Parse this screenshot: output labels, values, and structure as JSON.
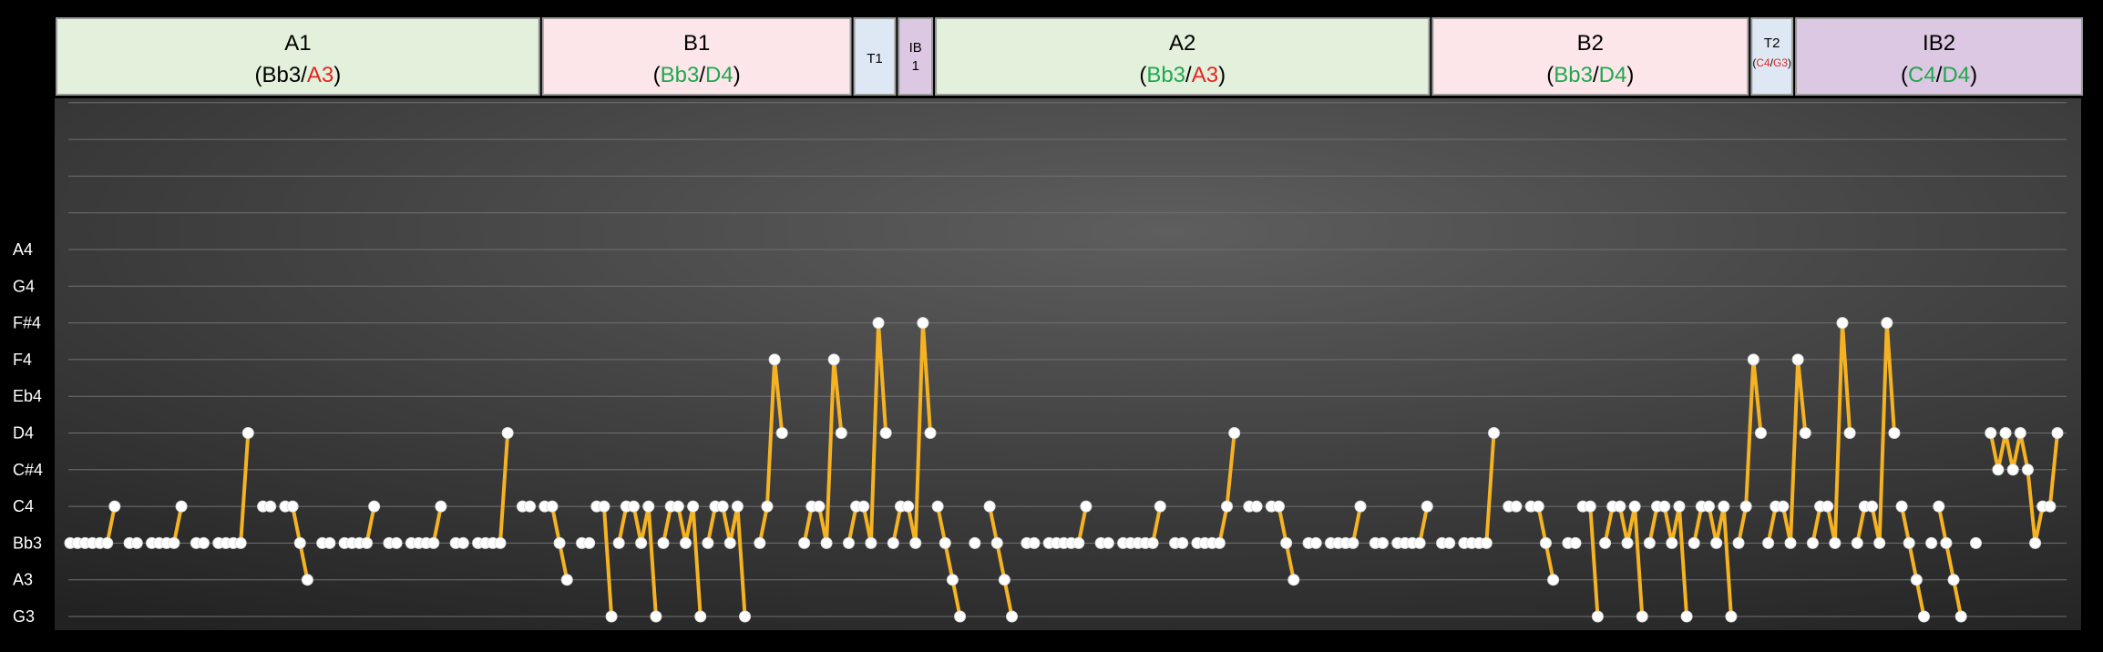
{
  "colors": {
    "A": "#e3f0dc",
    "B": "#fce6ea",
    "T": "#dde8f4",
    "IB": "#dcc8e2",
    "green": "#1fa84f",
    "red": "#e3261f",
    "line": "#f5b324",
    "marker": "#ffffff"
  },
  "sections": [
    {
      "type": "A",
      "name": "A1",
      "chords": [
        {
          "t": "Bb3",
          "c": "default"
        },
        {
          "t": "A3",
          "c": "red"
        }
      ],
      "start": 1,
      "end": 64
    },
    {
      "type": "B",
      "name": "B1",
      "chords": [
        {
          "t": "Bb3",
          "c": "green"
        },
        {
          "t": "D4",
          "c": "green"
        }
      ],
      "start": 65,
      "end": 106
    },
    {
      "type": "T",
      "name": "T1",
      "chords": [],
      "start": 107,
      "end": 112
    },
    {
      "type": "IB",
      "name": "IB 1",
      "chords": [],
      "start": 113,
      "end": 117
    },
    {
      "type": "A",
      "name": "A2",
      "chords": [
        {
          "t": "Bb3",
          "c": "green"
        },
        {
          "t": "A3",
          "c": "red"
        }
      ],
      "start": 118,
      "end": 184
    },
    {
      "type": "B",
      "name": "B2",
      "chords": [
        {
          "t": "Bb3",
          "c": "green"
        },
        {
          "t": "D4",
          "c": "green"
        }
      ],
      "start": 185,
      "end": 227
    },
    {
      "type": "T",
      "name": "T2",
      "chords": [
        {
          "t": "C4",
          "c": "red"
        },
        {
          "t": "G3",
          "c": "red"
        }
      ],
      "start": 228,
      "end": 233
    },
    {
      "type": "IB",
      "name": "IB2",
      "chords": [
        {
          "t": "C4",
          "c": "green"
        },
        {
          "t": "D4",
          "c": "green"
        }
      ],
      "start": 234,
      "end": 250
    }
  ],
  "chart_data": {
    "type": "line",
    "xlim": [
      0,
      252
    ],
    "y_tick_labels": [
      "G3",
      "A3",
      "Bb3",
      "C4",
      "C#4",
      "D4",
      "Eb4",
      "F4",
      "F#4",
      "G4",
      "A4",
      "",
      "",
      "",
      ""
    ],
    "ylim": [
      0,
      14
    ],
    "grid": true,
    "series": [
      {
        "points": [
          [
            1,
            2
          ],
          [
            2,
            2
          ]
        ]
      },
      {
        "points": [
          [
            3,
            2
          ],
          [
            4,
            2
          ],
          [
            5,
            2
          ],
          [
            6,
            2
          ],
          [
            7,
            3
          ]
        ]
      },
      {
        "points": [
          [
            9,
            2
          ],
          [
            10,
            2
          ]
        ]
      },
      {
        "points": [
          [
            12,
            2
          ],
          [
            13,
            2
          ],
          [
            14,
            2
          ],
          [
            15,
            2
          ],
          [
            16,
            3
          ]
        ]
      },
      {
        "points": [
          [
            18,
            2
          ],
          [
            19,
            2
          ]
        ]
      },
      {
        "points": [
          [
            21,
            2
          ],
          [
            22,
            2
          ],
          [
            23,
            2
          ],
          [
            24,
            2
          ],
          [
            25,
            5
          ]
        ]
      },
      {
        "points": [
          [
            27,
            3
          ],
          [
            28,
            3
          ]
        ]
      },
      {
        "points": [
          [
            30,
            3
          ],
          [
            31,
            3
          ],
          [
            32,
            2
          ],
          [
            33,
            1
          ]
        ]
      },
      {
        "points": [
          [
            35,
            2
          ],
          [
            36,
            2
          ]
        ]
      },
      {
        "points": [
          [
            38,
            2
          ],
          [
            39,
            2
          ],
          [
            40,
            2
          ],
          [
            41,
            2
          ],
          [
            42,
            3
          ]
        ]
      },
      {
        "points": [
          [
            44,
            2
          ],
          [
            45,
            2
          ]
        ]
      },
      {
        "points": [
          [
            47,
            2
          ],
          [
            48,
            2
          ],
          [
            49,
            2
          ],
          [
            50,
            2
          ],
          [
            51,
            3
          ]
        ]
      },
      {
        "points": [
          [
            53,
            2
          ],
          [
            54,
            2
          ]
        ]
      },
      {
        "points": [
          [
            56,
            2
          ],
          [
            57,
            2
          ],
          [
            58,
            2
          ],
          [
            59,
            2
          ],
          [
            60,
            5
          ]
        ]
      },
      {
        "points": [
          [
            62,
            3
          ],
          [
            63,
            3
          ]
        ]
      },
      {
        "points": [
          [
            65,
            3
          ],
          [
            66,
            3
          ],
          [
            67,
            2
          ],
          [
            68,
            1
          ]
        ]
      },
      {
        "points": [
          [
            70,
            2
          ],
          [
            71,
            2
          ]
        ]
      },
      {
        "points": [
          [
            72,
            3
          ],
          [
            73,
            3
          ],
          [
            74,
            0
          ]
        ]
      },
      {
        "points": [
          [
            75,
            2
          ],
          [
            76,
            3
          ],
          [
            77,
            3
          ],
          [
            78,
            2
          ],
          [
            79,
            3
          ],
          [
            80,
            0
          ]
        ]
      },
      {
        "points": [
          [
            81,
            2
          ],
          [
            82,
            3
          ],
          [
            83,
            3
          ],
          [
            84,
            2
          ],
          [
            85,
            3
          ],
          [
            86,
            0
          ]
        ]
      },
      {
        "points": [
          [
            87,
            2
          ],
          [
            88,
            3
          ],
          [
            89,
            3
          ],
          [
            90,
            2
          ],
          [
            91,
            3
          ],
          [
            92,
            0
          ]
        ]
      },
      {
        "points": [
          [
            94,
            2
          ],
          [
            95,
            3
          ],
          [
            96,
            7
          ],
          [
            97,
            5
          ]
        ]
      },
      {
        "points": [
          [
            100,
            2
          ],
          [
            101,
            3
          ],
          [
            102,
            3
          ],
          [
            103,
            2
          ],
          [
            104,
            7
          ],
          [
            105,
            5
          ]
        ]
      },
      {
        "points": [
          [
            106,
            2
          ],
          [
            107,
            3
          ],
          [
            108,
            3
          ],
          [
            109,
            2
          ],
          [
            110,
            8
          ],
          [
            111,
            5
          ]
        ]
      },
      {
        "points": [
          [
            112,
            2
          ],
          [
            113,
            3
          ],
          [
            114,
            3
          ],
          [
            115,
            2
          ],
          [
            116,
            8
          ],
          [
            117,
            5
          ]
        ]
      },
      {
        "points": [
          [
            118,
            3
          ],
          [
            119,
            2
          ],
          [
            120,
            1
          ],
          [
            121,
            0
          ]
        ]
      },
      {
        "points": [
          [
            123,
            2
          ]
        ]
      },
      {
        "points": [
          [
            125,
            3
          ],
          [
            126,
            2
          ],
          [
            127,
            1
          ],
          [
            128,
            0
          ]
        ]
      },
      {
        "points": [
          [
            130,
            2
          ],
          [
            131,
            2
          ]
        ]
      },
      {
        "points": [
          [
            133,
            2
          ],
          [
            134,
            2
          ],
          [
            135,
            2
          ],
          [
            136,
            2
          ],
          [
            137,
            2
          ],
          [
            138,
            3
          ]
        ]
      },
      {
        "points": [
          [
            140,
            2
          ],
          [
            141,
            2
          ]
        ]
      },
      {
        "points": [
          [
            143,
            2
          ],
          [
            144,
            2
          ],
          [
            145,
            2
          ],
          [
            146,
            2
          ],
          [
            147,
            2
          ],
          [
            148,
            3
          ]
        ]
      },
      {
        "points": [
          [
            150,
            2
          ],
          [
            151,
            2
          ]
        ]
      },
      {
        "points": [
          [
            153,
            2
          ],
          [
            154,
            2
          ],
          [
            155,
            2
          ],
          [
            156,
            2
          ],
          [
            157,
            3
          ],
          [
            158,
            5
          ]
        ]
      },
      {
        "points": [
          [
            160,
            3
          ],
          [
            161,
            3
          ]
        ]
      },
      {
        "points": [
          [
            163,
            3
          ],
          [
            164,
            3
          ],
          [
            165,
            2
          ],
          [
            166,
            1
          ]
        ]
      },
      {
        "points": [
          [
            168,
            2
          ],
          [
            169,
            2
          ]
        ]
      },
      {
        "points": [
          [
            171,
            2
          ],
          [
            172,
            2
          ],
          [
            173,
            2
          ],
          [
            174,
            2
          ],
          [
            175,
            3
          ]
        ]
      },
      {
        "points": [
          [
            177,
            2
          ],
          [
            178,
            2
          ]
        ]
      },
      {
        "points": [
          [
            180,
            2
          ],
          [
            181,
            2
          ],
          [
            182,
            2
          ],
          [
            183,
            2
          ],
          [
            184,
            3
          ]
        ]
      },
      {
        "points": [
          [
            186,
            2
          ],
          [
            187,
            2
          ]
        ]
      },
      {
        "points": [
          [
            189,
            2
          ],
          [
            190,
            2
          ],
          [
            191,
            2
          ],
          [
            192,
            2
          ],
          [
            193,
            5
          ]
        ]
      },
      {
        "points": [
          [
            195,
            3
          ],
          [
            196,
            3
          ]
        ]
      },
      {
        "points": [
          [
            198,
            3
          ],
          [
            199,
            3
          ],
          [
            200,
            2
          ],
          [
            201,
            1
          ]
        ]
      },
      {
        "points": [
          [
            203,
            2
          ],
          [
            204,
            2
          ]
        ]
      },
      {
        "points": [
          [
            205,
            3
          ],
          [
            206,
            3
          ],
          [
            207,
            0
          ]
        ]
      },
      {
        "points": [
          [
            208,
            2
          ],
          [
            209,
            3
          ],
          [
            210,
            3
          ],
          [
            211,
            2
          ],
          [
            212,
            3
          ],
          [
            213,
            0
          ]
        ]
      },
      {
        "points": [
          [
            214,
            2
          ],
          [
            215,
            3
          ],
          [
            216,
            3
          ],
          [
            217,
            2
          ],
          [
            218,
            3
          ],
          [
            219,
            0
          ]
        ]
      },
      {
        "points": [
          [
            220,
            2
          ],
          [
            221,
            3
          ],
          [
            222,
            3
          ],
          [
            223,
            2
          ],
          [
            224,
            3
          ],
          [
            225,
            0
          ]
        ]
      },
      {
        "points": [
          [
            226,
            2
          ],
          [
            227,
            3
          ],
          [
            228,
            7
          ],
          [
            229,
            5
          ]
        ]
      },
      {
        "points": [
          [
            230,
            2
          ],
          [
            231,
            3
          ],
          [
            232,
            3
          ],
          [
            233,
            2
          ],
          [
            234,
            7
          ],
          [
            235,
            5
          ]
        ]
      },
      {
        "points": [
          [
            236,
            2
          ],
          [
            237,
            3
          ],
          [
            238,
            3
          ],
          [
            239,
            2
          ],
          [
            240,
            8
          ],
          [
            241,
            5
          ]
        ]
      },
      {
        "points": [
          [
            242,
            2
          ],
          [
            243,
            3
          ],
          [
            244,
            3
          ],
          [
            245,
            2
          ],
          [
            246,
            8
          ],
          [
            247,
            5
          ]
        ]
      },
      {
        "points": [
          [
            248,
            3
          ],
          [
            249,
            2
          ],
          [
            250,
            1
          ],
          [
            251,
            0
          ]
        ]
      },
      {
        "points": [
          [
            252,
            2
          ]
        ]
      },
      {
        "points": [
          [
            253,
            3
          ],
          [
            254,
            2
          ],
          [
            255,
            1
          ],
          [
            256,
            0
          ]
        ]
      },
      {
        "points": [
          [
            258,
            2
          ]
        ]
      },
      {
        "points": [
          [
            260,
            5
          ],
          [
            261,
            4
          ],
          [
            262,
            5
          ],
          [
            263,
            4
          ],
          [
            264,
            5
          ],
          [
            265,
            4
          ],
          [
            266,
            2
          ],
          [
            267,
            3
          ],
          [
            268,
            3
          ],
          [
            269,
            5
          ]
        ]
      }
    ]
  }
}
